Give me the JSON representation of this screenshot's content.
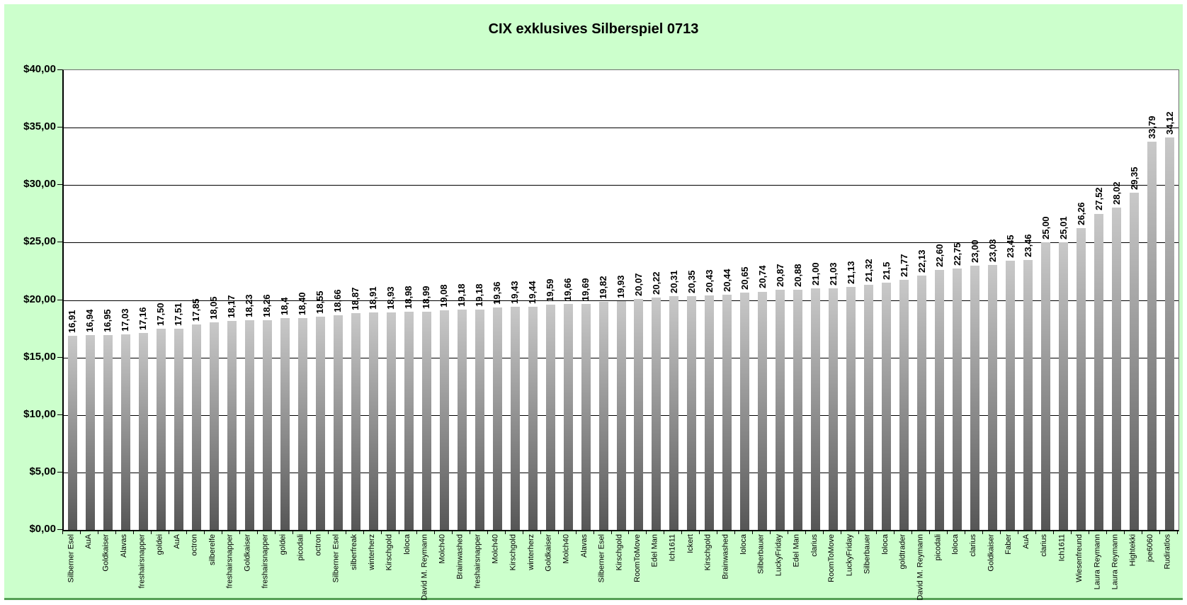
{
  "chart_data": {
    "type": "bar",
    "title": "CIX exklusives Silberspiel 0713",
    "categories": [
      "Silberner Esel",
      "AuA",
      "Goldkaiser",
      "Alavas",
      "freshairsnapper",
      "goldei",
      "AuA",
      "octron",
      "silberelfe",
      "freshairsnapper",
      "Goldkaiser",
      "freshairsnapper",
      "goldei",
      "picodali",
      "octron",
      "Silberner Esel",
      "silberfreak",
      "winterherz",
      "Kirschgold",
      "loloca",
      "David M. Reymann",
      "Molch40",
      "Brainwashed",
      "freshairsnapper",
      "Molch40",
      "Kirschgold",
      "winterherz",
      "Goldkaiser",
      "Molch40",
      "Alavas",
      "Silberner Esel",
      "Kirschgold",
      "RoomToMove",
      "Edel Man",
      "Ich1611",
      "Ickert",
      "Kirschgold",
      "Brainwashed",
      "loloca",
      "Silberbauer",
      "LuckyFriday",
      "Edel Man",
      "clarius",
      "RoomToMove",
      "LuckyFriday",
      "Silberbauer",
      "loloca",
      "goldtrader",
      "David M. Reymann",
      "picodali",
      "loloca",
      "clarius",
      "Goldkaiser",
      "Faber",
      "AuA",
      "clarius",
      "Ich1611",
      "Wiesenfreund",
      "Laura Reymann",
      "Laura Reymann",
      "Hightekki",
      "joe6060",
      "Rudiratlos"
    ],
    "values": [
      16.91,
      16.94,
      16.95,
      17.03,
      17.16,
      17.5,
      17.51,
      17.85,
      18.05,
      18.17,
      18.23,
      18.26,
      18.4,
      18.4,
      18.55,
      18.66,
      18.87,
      18.91,
      18.93,
      18.98,
      18.99,
      19.08,
      19.18,
      19.18,
      19.36,
      19.43,
      19.44,
      19.59,
      19.66,
      19.69,
      19.82,
      19.93,
      20.07,
      20.22,
      20.31,
      20.35,
      20.43,
      20.44,
      20.65,
      20.74,
      20.87,
      20.88,
      21.0,
      21.03,
      21.13,
      21.32,
      21.5,
      21.77,
      22.13,
      22.6,
      22.75,
      23.0,
      23.03,
      23.45,
      23.46,
      25.0,
      25.01,
      26.26,
      27.52,
      28.02,
      29.35,
      33.79,
      34.12
    ],
    "value_labels": [
      "16,91",
      "16,94",
      "16,95",
      "17,03",
      "17,16",
      "17,50",
      "17,51",
      "17,85",
      "18,05",
      "18,17",
      "18,23",
      "18,26",
      "18,4",
      "18,40",
      "18,55",
      "18,66",
      "18,87",
      "18,91",
      "18,93",
      "18,98",
      "18,99",
      "19,08",
      "19,18",
      "19,18",
      "19,36",
      "19,43",
      "19,44",
      "19,59",
      "19,66",
      "19,69",
      "19,82",
      "19,93",
      "20,07",
      "20,22",
      "20,31",
      "20,35",
      "20,43",
      "20,44",
      "20,65",
      "20,74",
      "20,87",
      "20,88",
      "21,00",
      "21,03",
      "21,13",
      "21,32",
      "21,5",
      "21,77",
      "22,13",
      "22,60",
      "22,75",
      "23,00",
      "23,03",
      "23,45",
      "23,46",
      "25,00",
      "25,01",
      "26,26",
      "27,52",
      "28,02",
      "29,35",
      "33,79",
      "34,12"
    ],
    "xlabel": "",
    "ylabel": "",
    "ylim": [
      0,
      40
    ],
    "grid": true,
    "legend": "none",
    "y_axis": {
      "tick_values": [
        40,
        35,
        30,
        25,
        20,
        15,
        10,
        5,
        0
      ],
      "tick_labels": [
        "$40,00",
        "$35,00",
        "$30,00",
        "$25,00",
        "$20,00",
        "$15,00",
        "$10,00",
        "$5,00",
        "$0,00"
      ]
    },
    "colors": {
      "page_background": "#ccffcc",
      "plot_background": "#ffffff",
      "bar_top": "#c9c9c9",
      "bar_bottom": "#565656",
      "gridline": "#000000",
      "bottom_edge_green": "#55a055",
      "text": "#000000"
    }
  }
}
